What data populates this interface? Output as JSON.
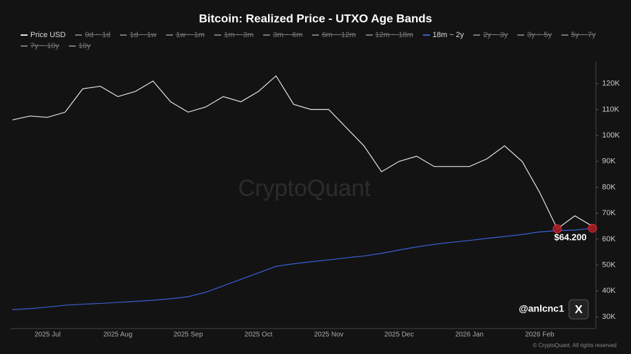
{
  "chart_data": {
    "type": "line",
    "title": "Bitcoin: Realized Price - UTXO Age Bands",
    "categories": [
      null,
      null,
      "2025 Jul",
      null,
      null,
      null,
      "2025 Aug",
      null,
      null,
      null,
      "2025 Sep",
      null,
      null,
      null,
      "2025 Oct",
      null,
      null,
      null,
      "2025 Nov",
      null,
      null,
      null,
      "2025 Dec",
      null,
      null,
      null,
      "2026 Jan",
      null,
      null,
      null,
      "2026 Feb",
      null,
      null,
      null
    ],
    "series": [
      {
        "name": "Price USD",
        "color": "#e6e6e6",
        "values": [
          106000,
          107500,
          107000,
          109000,
          118000,
          119000,
          115000,
          117000,
          121000,
          113000,
          109000,
          111000,
          115000,
          113000,
          117000,
          123000,
          112000,
          110000,
          110000,
          103000,
          96000,
          86000,
          90000,
          92000,
          88000,
          88000,
          88000,
          91000,
          96000,
          90000,
          78000,
          64000,
          69000,
          65000
        ]
      },
      {
        "name": "18m ~ 2y",
        "color": "#3b5fd6",
        "values": [
          32800,
          33200,
          33800,
          34500,
          34900,
          35200,
          35600,
          36000,
          36400,
          37000,
          37800,
          39500,
          42000,
          44500,
          47000,
          49500,
          50500,
          51300,
          52000,
          52800,
          53500,
          54500,
          55800,
          57000,
          58000,
          58800,
          59500,
          60300,
          61000,
          61800,
          62800,
          63300,
          63500,
          64200
        ]
      }
    ],
    "hidden_series": [
      "0d ~ 1d",
      "1d ~ 1w",
      "1w ~ 1m",
      "1m ~ 3m",
      "3m ~ 6m",
      "6m ~ 12m",
      "12m ~ 18m",
      "2y ~ 3y",
      "3y ~ 5y",
      "5y ~ 7y",
      "7y ~ 10y",
      "10y"
    ],
    "ylim": [
      25500,
      128400
    ],
    "yticks": [
      {
        "value": 30000,
        "label": "30K"
      },
      {
        "value": 40000,
        "label": "40K"
      },
      {
        "value": 50000,
        "label": "50K"
      },
      {
        "value": 60000,
        "label": "60K"
      },
      {
        "value": 70000,
        "label": "70K"
      },
      {
        "value": 80000,
        "label": "80K"
      },
      {
        "value": 90000,
        "label": "90K"
      },
      {
        "value": 100000,
        "label": "100K"
      },
      {
        "value": 110000,
        "label": "110K"
      },
      {
        "value": 120000,
        "label": "120K"
      }
    ],
    "annotation": "$64.200",
    "watermark": "CryptoQuant",
    "handle": "@anlcnc1",
    "logo": "X",
    "copyright": "© CryptoQuant. All rights reserved",
    "grid": false
  }
}
